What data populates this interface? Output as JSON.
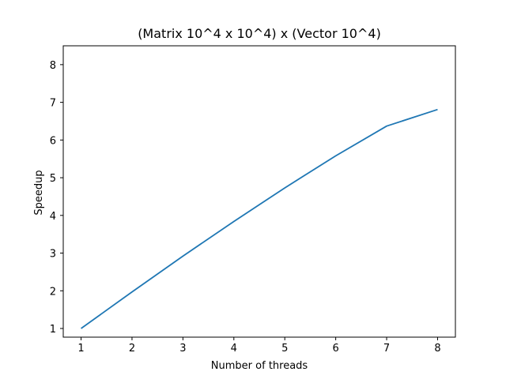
{
  "chart_data": {
    "type": "line",
    "title": "(Matrix 10^4 x 10^4) x (Vector 10^4)",
    "xlabel": "Number of threads",
    "ylabel": "Speedup",
    "x": [
      1,
      2,
      3,
      4,
      5,
      6,
      7,
      8
    ],
    "series": [
      {
        "name": "",
        "values": [
          1.0,
          1.97,
          2.92,
          3.84,
          4.73,
          5.58,
          6.37,
          6.81
        ]
      }
    ],
    "xlim": [
      0.65,
      8.35
    ],
    "ylim": [
      0.77,
      8.5
    ],
    "xticks": [
      1,
      2,
      3,
      4,
      5,
      6,
      7,
      8
    ],
    "yticks": [
      1,
      2,
      3,
      4,
      5,
      6,
      7,
      8
    ],
    "grid": false,
    "legend": false,
    "colors": {
      "line": "#1f77b4",
      "axes": "#000000",
      "background": "#ffffff"
    }
  }
}
